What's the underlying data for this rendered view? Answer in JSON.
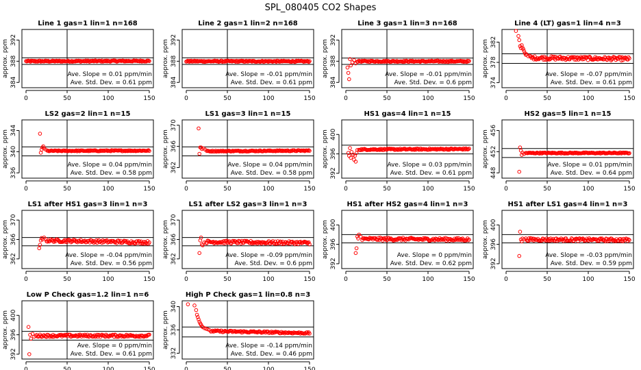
{
  "figure": {
    "title": "SPL_080405  CO2 Shapes"
  },
  "chart_data": [
    {
      "type": "scatter",
      "title": "Line 1 gas=1 lin=1 n=168",
      "ylabel": "approx. ppm",
      "xlim": [
        0,
        150
      ],
      "ylim": [
        383,
        394
      ],
      "yticks": [
        384,
        388,
        392
      ],
      "xticks": [
        0,
        50,
        100,
        150
      ],
      "vline": 50,
      "hlines": [
        388.65,
        387.4
      ],
      "slope_label": "Ave. Slope =  0.01  ppm/min",
      "sd_label": "Ave. Std. Dev. =  0.61  ppm",
      "series": [
        {
          "color": "#ff0000",
          "segments": [
            {
              "x_start": 0,
              "x_end": 150,
              "n": 168,
              "y_base": 388.0,
              "y_end": 388.05,
              "noise": 0.12
            }
          ]
        }
      ]
    },
    {
      "type": "scatter",
      "title": "Line 2 gas=1 lin=2 n=168",
      "ylabel": "approx. ppm",
      "xlim": [
        0,
        150
      ],
      "ylim": [
        383,
        394
      ],
      "yticks": [
        384,
        388,
        392
      ],
      "xticks": [
        0,
        50,
        100,
        150
      ],
      "vline": 50,
      "hlines": [
        388.65,
        387.4
      ],
      "slope_label": "Ave. Slope =  -0.01  ppm/min",
      "sd_label": "Ave. Std. Dev. =  0.61  ppm",
      "series": [
        {
          "color": "#ff0000",
          "segments": [
            {
              "x_start": 0,
              "x_end": 150,
              "n": 168,
              "y_base": 388.0,
              "y_end": 387.98,
              "noise": 0.12
            }
          ]
        }
      ]
    },
    {
      "type": "scatter",
      "title": "Line 3 gas=1 lin=3 n=168",
      "ylabel": "approx. ppm",
      "xlim": [
        0,
        150
      ],
      "ylim": [
        383,
        394
      ],
      "yticks": [
        384,
        388,
        392
      ],
      "xticks": [
        0,
        50,
        100,
        150
      ],
      "vline": 50,
      "hlines": [
        388.6,
        387.4
      ],
      "slope_label": "Ave. Slope =  -0.01  ppm/min",
      "sd_label": "Ave. Std. Dev. =  0.6  ppm",
      "series": [
        {
          "color": "#ff0000",
          "points": [
            [
              2,
              386.8
            ],
            [
              3,
              385.8
            ],
            [
              4,
              384.6
            ],
            [
              5,
              388.4
            ],
            [
              6,
              387.2
            ],
            [
              8,
              387.8
            ],
            [
              10,
              388.2
            ],
            [
              12,
              387.6
            ]
          ],
          "segments": [
            {
              "x_start": 14,
              "x_end": 150,
              "n": 145,
              "y_base": 388.0,
              "y_end": 387.98,
              "noise": 0.12
            }
          ]
        }
      ]
    },
    {
      "type": "scatter",
      "title": "Line 4 (LT) gas=1 lin=4 n=3",
      "ylabel": "approx. ppm",
      "xlim": [
        0,
        150
      ],
      "ylim": [
        373,
        384.5
      ],
      "yticks": [
        374,
        378,
        382
      ],
      "xticks": [
        0,
        50,
        100,
        150
      ],
      "vline": 50,
      "hlines": [
        379.7,
        377.8
      ],
      "slope_label": "Ave. Slope =  -0.07  ppm/min",
      "sd_label": "Ave. Std. Dev. =  0.61  ppm",
      "series": [
        {
          "color": "#ff0000",
          "points": [
            [
              12,
              384.2
            ],
            [
              15,
              383.2
            ],
            [
              16,
              382.4
            ],
            [
              17,
              381.2
            ],
            [
              18,
              380.8
            ],
            [
              19,
              381.4
            ],
            [
              20,
              380.9
            ],
            [
              21,
              380.6
            ],
            [
              22,
              380.2
            ],
            [
              23,
              379.8
            ],
            [
              24,
              379.5
            ],
            [
              25,
              379.6
            ],
            [
              27,
              379.2
            ],
            [
              29,
              379.3
            ]
          ],
          "segments": [
            {
              "x_start": 30,
              "x_end": 150,
              "n": 125,
              "y_base": 378.9,
              "y_end": 378.7,
              "noise": 0.35
            }
          ]
        }
      ]
    },
    {
      "type": "scatter",
      "title": "LS2 gas=2 lin=1 n=15",
      "ylabel": "approx. ppm",
      "xlim": [
        0,
        150
      ],
      "ylim": [
        335,
        346
      ],
      "yticks": [
        336,
        340,
        344
      ],
      "xticks": [
        0,
        50,
        100,
        150
      ],
      "vline": 50,
      "hlines": [
        340.9,
        339.2
      ],
      "slope_label": "Ave. Slope =  0.04  ppm/min",
      "sd_label": "Ave. Std. Dev. =  0.58  ppm",
      "series": [
        {
          "color": "#ff0000",
          "points": [
            [
              17,
              343.4
            ],
            [
              18,
              339.8
            ],
            [
              19,
              340.4
            ],
            [
              20,
              340.8
            ],
            [
              21,
              341.0
            ],
            [
              22,
              340.6
            ],
            [
              24,
              340.4
            ]
          ],
          "segments": [
            {
              "x_start": 26,
              "x_end": 150,
              "n": 128,
              "y_base": 340.15,
              "y_end": 340.2,
              "noise": 0.1
            }
          ]
        }
      ]
    },
    {
      "type": "scatter",
      "title": "LS1 gas=3 lin=1 n=15",
      "ylabel": "approx. ppm",
      "xlim": [
        0,
        150
      ],
      "ylim": [
        360,
        371
      ],
      "yticks": [
        362,
        366,
        370
      ],
      "xticks": [
        0,
        50,
        100,
        150
      ],
      "vline": 50,
      "hlines": [
        365.9,
        364.2
      ],
      "slope_label": "Ave. Slope =  0.04  ppm/min",
      "sd_label": "Ave. Std. Dev. =  0.58  ppm",
      "series": [
        {
          "color": "#ff0000",
          "points": [
            [
              15,
              369.4
            ],
            [
              16,
              364.6
            ],
            [
              17,
              365.8
            ],
            [
              18,
              365.8
            ],
            [
              19,
              365.5
            ],
            [
              21,
              365.6
            ],
            [
              23,
              365.4
            ]
          ],
          "segments": [
            {
              "x_start": 25,
              "x_end": 150,
              "n": 128,
              "y_base": 365.1,
              "y_end": 365.2,
              "noise": 0.1
            }
          ]
        }
      ]
    },
    {
      "type": "scatter",
      "title": "HS1 gas=4 lin=1 n=15",
      "ylabel": "approx. ppm",
      "xlim": [
        0,
        150
      ],
      "ylim": [
        391,
        403
      ],
      "yticks": [
        392,
        396,
        400
      ],
      "xticks": [
        0,
        50,
        100,
        150
      ],
      "vline": 50,
      "hlines": [
        397.8,
        396.0
      ],
      "slope_label": "Ave. Slope =  0.03  ppm/min",
      "sd_label": "Ave. Std. Dev. =  0.61  ppm",
      "series": [
        {
          "color": "#ff0000",
          "points": [
            [
              3,
              396.2
            ],
            [
              4,
              395.6
            ],
            [
              5,
              397.2
            ],
            [
              6,
              395.2
            ],
            [
              7,
              396.4
            ],
            [
              9,
              395.8
            ],
            [
              10,
              394.8
            ],
            [
              11,
              395.6
            ],
            [
              12,
              394.4
            ],
            [
              13,
              396.2
            ],
            [
              14,
              396.8
            ]
          ],
          "segments": [
            {
              "x_start": 16,
              "x_end": 150,
              "n": 140,
              "y_base": 396.9,
              "y_end": 397.0,
              "noise": 0.14
            }
          ]
        }
      ]
    },
    {
      "type": "scatter",
      "title": "HS2 gas=5 lin=1 n=15",
      "ylabel": "approx. ppm",
      "xlim": [
        0,
        150
      ],
      "ylim": [
        447,
        458
      ],
      "yticks": [
        448,
        452,
        456
      ],
      "xticks": [
        0,
        50,
        100,
        150
      ],
      "vline": 50,
      "hlines": [
        452.6,
        450.9
      ],
      "slope_label": "Ave. Slope =  0.01  ppm/min",
      "sd_label": "Ave. Std. Dev. =  0.64  ppm",
      "series": [
        {
          "color": "#ff0000",
          "points": [
            [
              16,
              448.2
            ],
            [
              17,
              452.8
            ],
            [
              18,
              452.2
            ],
            [
              19,
              451.4
            ],
            [
              20,
              451.8
            ],
            [
              22,
              451.6
            ]
          ],
          "segments": [
            {
              "x_start": 24,
              "x_end": 150,
              "n": 130,
              "y_base": 451.75,
              "y_end": 451.75,
              "noise": 0.1
            }
          ]
        }
      ]
    },
    {
      "type": "scatter",
      "title": "LS1 after HS1 gas=3 lin=1 n=3",
      "ylabel": "approx. ppm",
      "xlim": [
        0,
        150
      ],
      "ylim": [
        360,
        372
      ],
      "yticks": [
        362,
        366,
        370
      ],
      "xticks": [
        0,
        50,
        100,
        150
      ],
      "vline": 50,
      "hlines": [
        366.4,
        364.7
      ],
      "slope_label": "Ave. Slope =  -0.04  ppm/min",
      "sd_label": "Ave. Std. Dev. =  0.56  ppm",
      "series": [
        {
          "color": "#ff0000",
          "points": [
            [
              16,
              364.2
            ],
            [
              17,
              364.9
            ],
            [
              18,
              365.8
            ],
            [
              19,
              366.3
            ],
            [
              20,
              366.0
            ],
            [
              22,
              366.4
            ]
          ],
          "segments": [
            {
              "x_start": 24,
              "x_end": 150,
              "n": 128,
              "y_base": 365.8,
              "y_end": 365.4,
              "noise": 0.3
            }
          ]
        }
      ]
    },
    {
      "type": "scatter",
      "title": "LS1 after LS2 gas=3 lin=1 n=3",
      "ylabel": "approx. ppm",
      "xlim": [
        0,
        150
      ],
      "ylim": [
        360,
        372
      ],
      "yticks": [
        362,
        366,
        370
      ],
      "xticks": [
        0,
        50,
        100,
        150
      ],
      "vline": 50,
      "hlines": [
        366.4,
        364.7
      ],
      "slope_label": "Ave. Slope =  -0.09  ppm/min",
      "sd_label": "Ave. Std. Dev. =  0.6  ppm",
      "series": [
        {
          "color": "#ff0000",
          "points": [
            [
              16,
              363.2
            ],
            [
              17,
              365.8
            ],
            [
              18,
              366.4
            ],
            [
              19,
              365.0
            ],
            [
              20,
              364.8
            ],
            [
              22,
              365.4
            ]
          ],
          "segments": [
            {
              "x_start": 24,
              "x_end": 150,
              "n": 128,
              "y_base": 365.5,
              "y_end": 365.3,
              "noise": 0.3
            }
          ]
        }
      ]
    },
    {
      "type": "scatter",
      "title": "HS1 after HS2 gas=4 lin=1 n=3",
      "ylabel": "approx. ppm",
      "xlim": [
        0,
        150
      ],
      "ylim": [
        391,
        403
      ],
      "yticks": [
        392,
        396,
        400
      ],
      "xticks": [
        0,
        50,
        100,
        150
      ],
      "vline": 50,
      "hlines": [
        398.0,
        396.3
      ],
      "slope_label": "Ave. Slope =  0 ppm/min",
      "sd_label": "Ave. Std. Dev. =  0.62  ppm",
      "series": [
        {
          "color": "#ff0000",
          "points": [
            [
              12,
              394.2
            ],
            [
              13,
              395.2
            ],
            [
              14,
              397.6
            ],
            [
              15,
              397.2
            ],
            [
              16,
              398.0
            ],
            [
              18,
              397.6
            ]
          ],
          "segments": [
            {
              "x_start": 20,
              "x_end": 150,
              "n": 132,
              "y_base": 397.1,
              "y_end": 397.0,
              "noise": 0.3
            }
          ]
        }
      ]
    },
    {
      "type": "scatter",
      "title": "HS1 after LS1 gas=4 lin=1 n=3",
      "ylabel": "approx. ppm",
      "xlim": [
        0,
        150
      ],
      "ylim": [
        391,
        403
      ],
      "yticks": [
        392,
        396,
        400
      ],
      "xticks": [
        0,
        50,
        100,
        150
      ],
      "vline": 50,
      "hlines": [
        398.0,
        396.3
      ],
      "slope_label": "Ave. Slope =  -0.03  ppm/min",
      "sd_label": "Ave. Std. Dev. =  0.59  ppm",
      "series": [
        {
          "color": "#ff0000",
          "points": [
            [
              16,
              393.6
            ],
            [
              17,
              398.6
            ],
            [
              18,
              397.0
            ],
            [
              19,
              396.6
            ],
            [
              20,
              397.2
            ],
            [
              22,
              397.0
            ]
          ],
          "segments": [
            {
              "x_start": 24,
              "x_end": 150,
              "n": 130,
              "y_base": 397.0,
              "y_end": 396.9,
              "noise": 0.3
            }
          ]
        }
      ]
    },
    {
      "type": "scatter",
      "title": "Low P Check gas=1.2 lin=1 n=6",
      "ylabel": "approx. ppm",
      "xlim": [
        0,
        150
      ],
      "ylim": [
        391,
        403
      ],
      "yticks": [
        392,
        396,
        400
      ],
      "xticks": [
        0,
        50,
        100,
        150
      ],
      "vline": 50,
      "hlines": [
        396.7,
        394.9
      ],
      "slope_label": "Ave. Slope =  0 ppm/min",
      "sd_label": "Ave. Std. Dev. =  0.61  ppm",
      "series": [
        {
          "color": "#ff0000",
          "points": [
            [
              3,
              397.6
            ],
            [
              4,
              392.0
            ],
            [
              5,
              396.0
            ],
            [
              6,
              395.2
            ],
            [
              8,
              396.2
            ],
            [
              10,
              395.6
            ]
          ],
          "segments": [
            {
              "x_start": 12,
              "x_end": 150,
              "n": 140,
              "y_base": 395.8,
              "y_end": 395.8,
              "noise": 0.25
            }
          ]
        }
      ]
    },
    {
      "type": "scatter",
      "title": "High P Check gas=1 lin=0.8 n=3",
      "ylabel": "approx. ppm",
      "xlim": [
        0,
        150
      ],
      "ylim": [
        331,
        341
      ],
      "yticks": [
        332,
        336,
        340
      ],
      "xticks": [
        0,
        50,
        100,
        150
      ],
      "vline": 50,
      "hlines": [
        336.5,
        334.8
      ],
      "slope_label": "Ave. Slope =  -0.14  ppm/min",
      "sd_label": "Ave. Std. Dev. =  0.46  ppm",
      "series": [
        {
          "color": "#ff0000",
          "points": [
            [
              2,
              340.4
            ],
            [
              10,
              340.2
            ],
            [
              12,
              339.4
            ],
            [
              13,
              338.6
            ],
            [
              14,
              338.2
            ],
            [
              15,
              337.8
            ],
            [
              16,
              337.4
            ],
            [
              17,
              337.1
            ],
            [
              18,
              336.9
            ],
            [
              19,
              336.6
            ],
            [
              20,
              336.5
            ],
            [
              22,
              336.3
            ],
            [
              24,
              336.2
            ],
            [
              26,
              336.1
            ],
            [
              28,
              336.0
            ]
          ],
          "segments": [
            {
              "x_start": 30,
              "x_end": 150,
              "n": 120,
              "y_base": 335.8,
              "y_end": 335.45,
              "noise": 0.15
            }
          ]
        }
      ]
    }
  ]
}
